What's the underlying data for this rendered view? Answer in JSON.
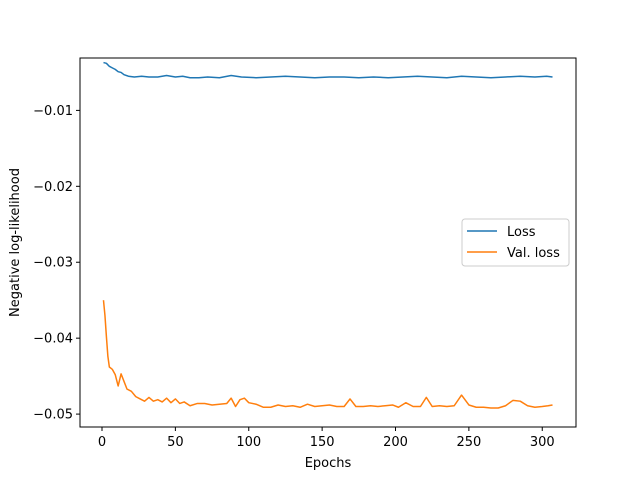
{
  "chart_data": {
    "type": "line",
    "title": "",
    "xlabel": "Epochs",
    "ylabel": "Negative log-likelihood",
    "xlim": [
      -15,
      323
    ],
    "ylim": [
      -0.0517,
      -0.0031
    ],
    "xticks": [
      0,
      50,
      100,
      150,
      200,
      250,
      300
    ],
    "xtick_labels": [
      "0",
      "50",
      "100",
      "150",
      "200",
      "250",
      "300"
    ],
    "yticks": [
      -0.01,
      -0.02,
      -0.03,
      -0.04,
      -0.05
    ],
    "ytick_labels": [
      "−0.01",
      "−0.02",
      "−0.03",
      "−0.04",
      "−0.05"
    ],
    "grid": false,
    "legend": {
      "position": "center-right"
    },
    "series": [
      {
        "name": "Loss",
        "color": "#1f77b4",
        "points": [
          [
            1,
            -0.0037
          ],
          [
            3,
            -0.0038
          ],
          [
            5,
            -0.0042
          ],
          [
            7,
            -0.0044
          ],
          [
            9,
            -0.0046
          ],
          [
            11,
            -0.0049
          ],
          [
            13,
            -0.005
          ],
          [
            15,
            -0.0053
          ],
          [
            18,
            -0.0055
          ],
          [
            22,
            -0.0056
          ],
          [
            27,
            -0.0055
          ],
          [
            32,
            -0.0056
          ],
          [
            38,
            -0.0056
          ],
          [
            44,
            -0.0054
          ],
          [
            50,
            -0.0056
          ],
          [
            55,
            -0.0055
          ],
          [
            60,
            -0.0057
          ],
          [
            66,
            -0.0057
          ],
          [
            72,
            -0.0056
          ],
          [
            80,
            -0.0057
          ],
          [
            88,
            -0.0054
          ],
          [
            95,
            -0.0056
          ],
          [
            105,
            -0.0057
          ],
          [
            115,
            -0.0056
          ],
          [
            125,
            -0.0055
          ],
          [
            135,
            -0.0056
          ],
          [
            145,
            -0.0057
          ],
          [
            155,
            -0.0056
          ],
          [
            165,
            -0.0056
          ],
          [
            175,
            -0.0057
          ],
          [
            185,
            -0.0056
          ],
          [
            195,
            -0.0057
          ],
          [
            205,
            -0.0056
          ],
          [
            215,
            -0.0055
          ],
          [
            225,
            -0.0056
          ],
          [
            235,
            -0.0057
          ],
          [
            245,
            -0.0055
          ],
          [
            255,
            -0.0056
          ],
          [
            265,
            -0.0057
          ],
          [
            275,
            -0.0056
          ],
          [
            285,
            -0.0055
          ],
          [
            295,
            -0.0056
          ],
          [
            303,
            -0.0055
          ],
          [
            307,
            -0.0056
          ]
        ]
      },
      {
        "name": "Val. loss",
        "color": "#ff7f0e",
        "points": [
          [
            1,
            -0.035
          ],
          [
            2,
            -0.037
          ],
          [
            3,
            -0.0398
          ],
          [
            4,
            -0.0424
          ],
          [
            5,
            -0.0438
          ],
          [
            7,
            -0.0441
          ],
          [
            9,
            -0.0448
          ],
          [
            11,
            -0.0463
          ],
          [
            13,
            -0.0447
          ],
          [
            15,
            -0.0457
          ],
          [
            17,
            -0.0467
          ],
          [
            20,
            -0.047
          ],
          [
            23,
            -0.0477
          ],
          [
            26,
            -0.048
          ],
          [
            29,
            -0.0483
          ],
          [
            32,
            -0.0478
          ],
          [
            35,
            -0.0483
          ],
          [
            38,
            -0.0481
          ],
          [
            41,
            -0.0484
          ],
          [
            44,
            -0.0479
          ],
          [
            47,
            -0.0485
          ],
          [
            50,
            -0.048
          ],
          [
            53,
            -0.0486
          ],
          [
            56,
            -0.0484
          ],
          [
            60,
            -0.0489
          ],
          [
            65,
            -0.0486
          ],
          [
            70,
            -0.0486
          ],
          [
            75,
            -0.0488
          ],
          [
            80,
            -0.0487
          ],
          [
            85,
            -0.0486
          ],
          [
            88,
            -0.0479
          ],
          [
            91,
            -0.049
          ],
          [
            94,
            -0.0481
          ],
          [
            97,
            -0.0479
          ],
          [
            100,
            -0.0485
          ],
          [
            105,
            -0.0487
          ],
          [
            110,
            -0.0491
          ],
          [
            115,
            -0.0491
          ],
          [
            120,
            -0.0488
          ],
          [
            125,
            -0.049
          ],
          [
            130,
            -0.0489
          ],
          [
            135,
            -0.0491
          ],
          [
            140,
            -0.0487
          ],
          [
            145,
            -0.049
          ],
          [
            150,
            -0.0489
          ],
          [
            155,
            -0.0488
          ],
          [
            160,
            -0.049
          ],
          [
            165,
            -0.049
          ],
          [
            169,
            -0.048
          ],
          [
            173,
            -0.049
          ],
          [
            178,
            -0.049
          ],
          [
            183,
            -0.0489
          ],
          [
            188,
            -0.049
          ],
          [
            193,
            -0.0489
          ],
          [
            198,
            -0.0488
          ],
          [
            202,
            -0.0491
          ],
          [
            207,
            -0.0485
          ],
          [
            212,
            -0.049
          ],
          [
            217,
            -0.049
          ],
          [
            221,
            -0.0478
          ],
          [
            225,
            -0.049
          ],
          [
            230,
            -0.0489
          ],
          [
            235,
            -0.049
          ],
          [
            240,
            -0.0489
          ],
          [
            245,
            -0.0475
          ],
          [
            250,
            -0.0488
          ],
          [
            255,
            -0.0491
          ],
          [
            260,
            -0.0491
          ],
          [
            265,
            -0.0492
          ],
          [
            270,
            -0.0492
          ],
          [
            275,
            -0.0489
          ],
          [
            280,
            -0.0482
          ],
          [
            285,
            -0.0483
          ],
          [
            290,
            -0.0489
          ],
          [
            295,
            -0.0491
          ],
          [
            300,
            -0.049
          ],
          [
            304,
            -0.0489
          ],
          [
            307,
            -0.0488
          ]
        ]
      }
    ]
  }
}
